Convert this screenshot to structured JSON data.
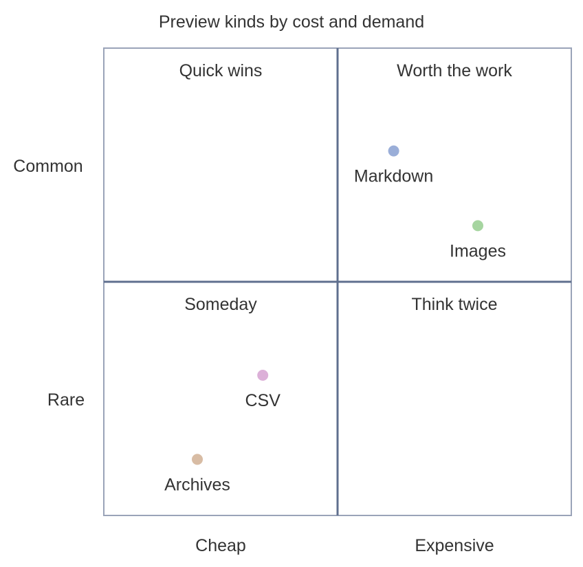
{
  "chart_data": {
    "type": "scatter",
    "title": "Preview kinds by cost and demand",
    "x_axis": {
      "categories": [
        "Cheap",
        "Expensive"
      ],
      "range": [
        0,
        1
      ]
    },
    "y_axis": {
      "categories": [
        "Rare",
        "Common"
      ],
      "range": [
        0,
        1
      ]
    },
    "quadrants": [
      {
        "key": "top-left",
        "label": "Quick wins"
      },
      {
        "key": "top-right",
        "label": "Worth the work"
      },
      {
        "key": "bottom-left",
        "label": "Someday"
      },
      {
        "key": "bottom-right",
        "label": "Think twice"
      }
    ],
    "points": [
      {
        "label": "Markdown",
        "x": 0.62,
        "y": 0.78,
        "color": "#9aaed8"
      },
      {
        "label": "Images",
        "x": 0.8,
        "y": 0.62,
        "color": "#a6d5a0"
      },
      {
        "label": "CSV",
        "x": 0.34,
        "y": 0.3,
        "color": "#dcb0d8"
      },
      {
        "label": "Archives",
        "x": 0.2,
        "y": 0.12,
        "color": "#d8bca4"
      }
    ],
    "grid": false,
    "legend": "none"
  },
  "colors": {
    "frame": "#9aa3b8",
    "divider": "#5f6f8e",
    "text": "#333333"
  }
}
